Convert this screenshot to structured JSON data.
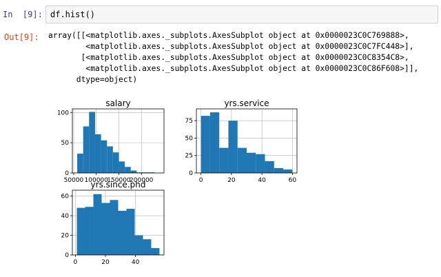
{
  "cells": {
    "input": {
      "prompt": "In  [9]:",
      "code": "df.hist()"
    },
    "output": {
      "prompt": "Out[9]:",
      "lines": [
        "array([[<matplotlib.axes._subplots.AxesSubplot object at 0x0000023C0C769888>,",
        "        <matplotlib.axes._subplots.AxesSubplot object at 0x0000023C0C7FC448>],",
        "       [<matplotlib.axes._subplots.AxesSubplot object at 0x0000023C0C8354C8>,",
        "        <matplotlib.axes._subplots.AxesSubplot object at 0x0000023C0C86F608>]],",
        "      dtype=object)"
      ]
    }
  },
  "colors": {
    "bar": "#1f77b4",
    "grid": "#b0b0b0",
    "prompt_in": "#303f9f",
    "prompt_out": "#d84315"
  },
  "chart_data": [
    {
      "type": "bar",
      "title": "salary",
      "xlabel": "",
      "ylabel": "",
      "bin_edges": [
        57800,
        71000,
        84100,
        97300,
        110500,
        123700,
        136800,
        150000,
        163200,
        176400,
        189500,
        202700,
        215900,
        229100,
        242200
      ],
      "values": [
        32,
        77,
        101,
        64,
        54,
        44,
        34,
        19,
        10,
        4,
        1,
        1,
        1,
        0
      ],
      "xticks": [
        50000,
        100000,
        150000,
        200000
      ],
      "xticklabels": [
        "50000",
        "100000",
        "150000",
        "200000"
      ],
      "yticks": [
        0,
        50,
        100
      ],
      "xlim": [
        47000,
        250000
      ],
      "ylim": [
        0,
        106
      ],
      "grid": true
    },
    {
      "type": "bar",
      "title": "yrs.service",
      "xlabel": "",
      "ylabel": "",
      "bin_edges": [
        0,
        6,
        12,
        18,
        24,
        30,
        36,
        42,
        48,
        54,
        60
      ],
      "values": [
        82,
        87,
        36,
        75,
        36,
        29,
        27,
        17,
        7,
        5
      ],
      "xticks": [
        0,
        20,
        40,
        60
      ],
      "xticklabels": [
        "0",
        "20",
        "40",
        "60"
      ],
      "yticks": [
        0,
        25,
        50,
        75
      ],
      "xlim": [
        -3,
        63
      ],
      "ylim": [
        0,
        92
      ],
      "grid": true
    },
    {
      "type": "bar",
      "title": "yrs.since.phd",
      "xlabel": "",
      "ylabel": "",
      "bin_edges": [
        1,
        6.5,
        12,
        17.5,
        23,
        28.5,
        34,
        39.5,
        45,
        50.5,
        56
      ],
      "values": [
        48,
        49,
        62,
        53,
        56,
        45,
        47,
        20,
        16,
        7
      ],
      "xticks": [
        0,
        20,
        40
      ],
      "xticklabels": [
        "0",
        "20",
        "40"
      ],
      "yticks": [
        0,
        20,
        40,
        60
      ],
      "xlim": [
        -2,
        59
      ],
      "ylim": [
        0,
        66
      ],
      "grid": true
    }
  ]
}
